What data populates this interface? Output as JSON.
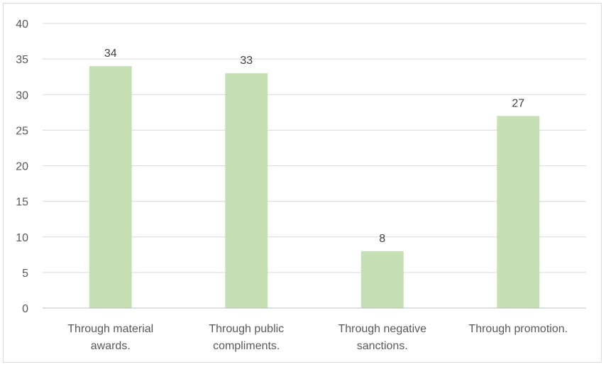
{
  "chart_data": {
    "type": "bar",
    "title": "",
    "xlabel": "",
    "ylabel": "",
    "categories": [
      [
        "Through material",
        "awards."
      ],
      [
        "Through public",
        "compliments."
      ],
      [
        "Through negative",
        "sanctions."
      ],
      [
        "Through promotion."
      ]
    ],
    "values": [
      34,
      33,
      8,
      27
    ],
    "ylim": [
      0,
      40
    ],
    "yticks": [
      0,
      5,
      10,
      15,
      20,
      25,
      30,
      35,
      40
    ],
    "grid": true,
    "legend": "none",
    "bar_color": "#c5e0b4",
    "grid_color": "#d9d9d9",
    "axis_color": "#bfbfbf"
  }
}
